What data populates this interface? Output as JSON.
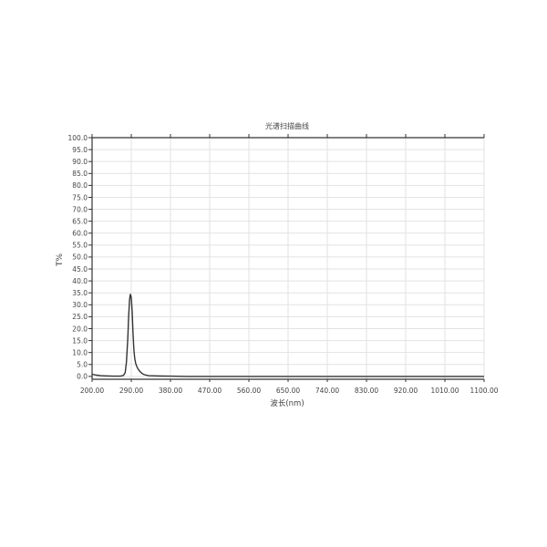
{
  "chart_data": {
    "type": "line",
    "title": "光谱扫描曲线",
    "xlabel": "波长(nm)",
    "ylabel": "T%",
    "xlim": [
      200,
      1100
    ],
    "ylim": [
      -1.2,
      100
    ],
    "grid": true,
    "xticks": [
      "200.00",
      "290.00",
      "380.00",
      "470.00",
      "560.00",
      "650.00",
      "740.00",
      "830.00",
      "920.00",
      "1010.00",
      "1100.00"
    ],
    "yticks": [
      "0.0",
      "5.0",
      "10.0",
      "15.0",
      "20.0",
      "25.0",
      "30.0",
      "35.0",
      "40.0",
      "45.0",
      "50.0",
      "55.0",
      "60.0",
      "65.0",
      "70.0",
      "75.0",
      "80.0",
      "85.0",
      "90.0",
      "95.0",
      "100.0"
    ],
    "line_color": "#333333",
    "series": [
      {
        "x": [
          200,
          205,
          210,
          220,
          230,
          250,
          265,
          272,
          276,
          279,
          282,
          284,
          286,
          288,
          290,
          292,
          294,
          296,
          298,
          300,
          303,
          306,
          310,
          315,
          320,
          330,
          345,
          360,
          380,
          420,
          500,
          700,
          900,
          1100
        ],
        "y": [
          0.9,
          0.7,
          0.5,
          0.3,
          0.2,
          0.1,
          0.1,
          0.4,
          1.5,
          6,
          16,
          25,
          32,
          34.5,
          33,
          27,
          18,
          11,
          7.5,
          5.5,
          4,
          3,
          2,
          1.2,
          0.7,
          0.3,
          0.2,
          0.15,
          0.1,
          0,
          0,
          0,
          0,
          0
        ]
      }
    ]
  }
}
